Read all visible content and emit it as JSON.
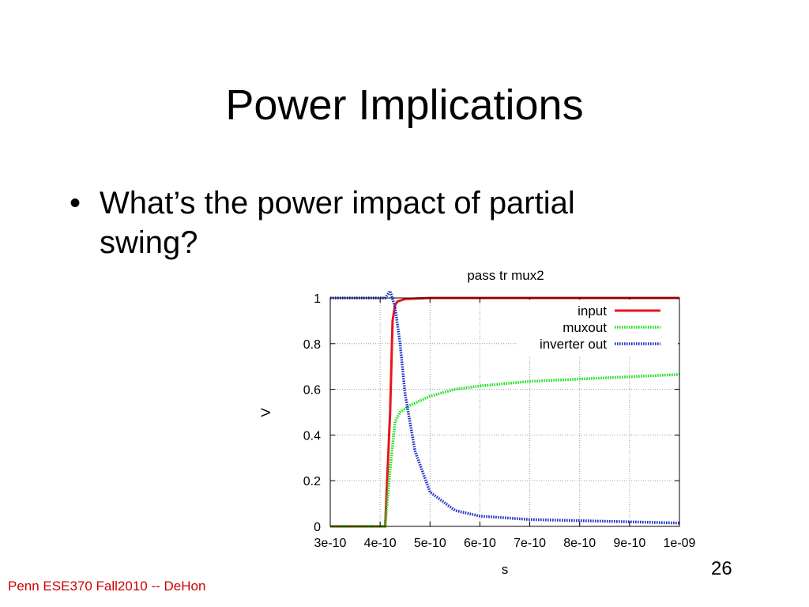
{
  "slide": {
    "title": "Power Implications",
    "bullets": [
      "What’s the power impact of partial swing?"
    ],
    "footer": "Penn ESE370 Fall2010 -- DeHon",
    "page_number": "26"
  },
  "chart_data": {
    "type": "line",
    "title": "pass tr mux2",
    "xlabel": "s",
    "ylabel": "V",
    "xlim": [
      3e-10,
      1e-09
    ],
    "ylim": [
      0,
      1
    ],
    "xticks": [
      3e-10,
      4e-10,
      5e-10,
      6e-10,
      7e-10,
      8e-10,
      9e-10,
      1e-09
    ],
    "xtick_labels": [
      "3e-10",
      "4e-10",
      "5e-10",
      "6e-10",
      "7e-10",
      "8e-10",
      "9e-10",
      "1e-09"
    ],
    "yticks": [
      0,
      0.2,
      0.4,
      0.6,
      0.8,
      1
    ],
    "ytick_labels": [
      "0",
      "0.2",
      "0.4",
      "0.6",
      "0.8",
      "1"
    ],
    "grid": true,
    "legend_position": "top-right",
    "series": [
      {
        "name": "input",
        "color": "#e8141c",
        "style": "solid",
        "x": [
          3e-10,
          4.1e-10,
          4.2e-10,
          4.25e-10,
          4.3e-10,
          4.35e-10,
          4.5e-10,
          5e-10,
          6e-10,
          7e-10,
          8e-10,
          9e-10,
          1e-09
        ],
        "y": [
          0,
          0,
          0.5,
          0.9,
          0.97,
          0.985,
          0.995,
          1,
          1,
          1,
          1,
          1,
          1
        ]
      },
      {
        "name": "muxout",
        "color": "#1ee01e",
        "style": "dotted",
        "x": [
          3e-10,
          4.1e-10,
          4.2e-10,
          4.3e-10,
          4.4e-10,
          4.6e-10,
          5e-10,
          5.5e-10,
          6e-10,
          6.5e-10,
          7e-10,
          8e-10,
          9e-10,
          1e-09
        ],
        "y": [
          0,
          0,
          0.25,
          0.46,
          0.5,
          0.53,
          0.57,
          0.6,
          0.615,
          0.625,
          0.635,
          0.645,
          0.655,
          0.665
        ]
      },
      {
        "name": "inverter out",
        "color": "#1a2fc8",
        "style": "dotted",
        "x": [
          3e-10,
          4e-10,
          4.1e-10,
          4.2e-10,
          4.3e-10,
          4.4e-10,
          4.5e-10,
          4.7e-10,
          5e-10,
          5.5e-10,
          6e-10,
          7e-10,
          8e-10,
          9e-10,
          1e-09
        ],
        "y": [
          1,
          1,
          1,
          1.03,
          0.96,
          0.8,
          0.58,
          0.33,
          0.15,
          0.07,
          0.045,
          0.03,
          0.025,
          0.02,
          0.015
        ]
      }
    ]
  }
}
